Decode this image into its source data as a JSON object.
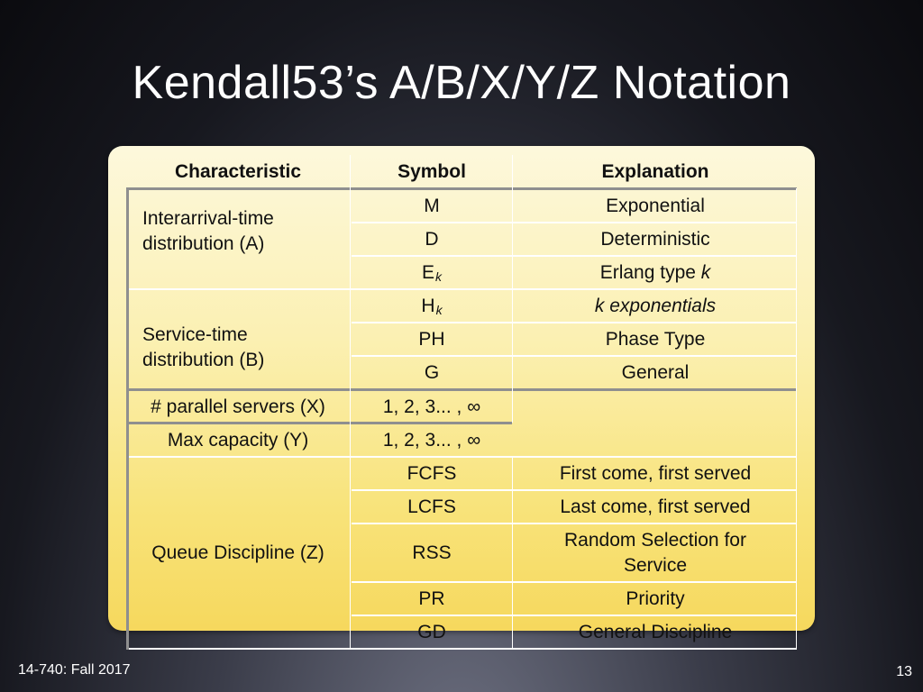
{
  "slide": {
    "title": "Kendall53’s A/B/X/Y/Z Notation",
    "footer_course": "14-740: Fall 2017",
    "page_number": "13"
  },
  "table": {
    "headers": {
      "characteristic": "Characteristic",
      "symbol": "Symbol",
      "explanation": "Explanation"
    },
    "characteristics": {
      "interarrival": "Interarrival-time distribution (A)",
      "service": "Service-time distribution (B)",
      "servers": "# parallel servers (X)",
      "capacity": "Max capacity (Y)",
      "discipline": "Queue Discipline (Z)"
    },
    "rows": [
      {
        "symbol": "M",
        "explanation": "Exponential"
      },
      {
        "symbol": "D",
        "explanation": "Deterministic"
      },
      {
        "symbol": "E",
        "symbol_sub": "k",
        "explanation": "Erlang type ",
        "explanation_var": "k"
      },
      {
        "symbol": "H",
        "symbol_sub": "k",
        "explanation_italic": "k exponentials"
      },
      {
        "symbol": "PH",
        "explanation": "Phase Type"
      },
      {
        "symbol": "G",
        "explanation": "General"
      },
      {
        "symbol": "1, 2, 3... , ∞",
        "explanation": ""
      },
      {
        "symbol": "1, 2, 3... , ∞",
        "explanation": ""
      },
      {
        "symbol": "FCFS",
        "explanation": "First come, first served"
      },
      {
        "symbol": "LCFS",
        "explanation": "Last come, first served"
      },
      {
        "symbol": "RSS",
        "explanation": "Random Selection for Service"
      },
      {
        "symbol": "PR",
        "explanation": "Priority"
      },
      {
        "symbol": "GD",
        "explanation": "General Discipline"
      }
    ]
  },
  "colors": {
    "panel_top": "#fdf8dc",
    "panel_bottom": "#f6d85d",
    "rule": "#8f8f8f",
    "text": "#111111",
    "title": "#ffffff"
  }
}
